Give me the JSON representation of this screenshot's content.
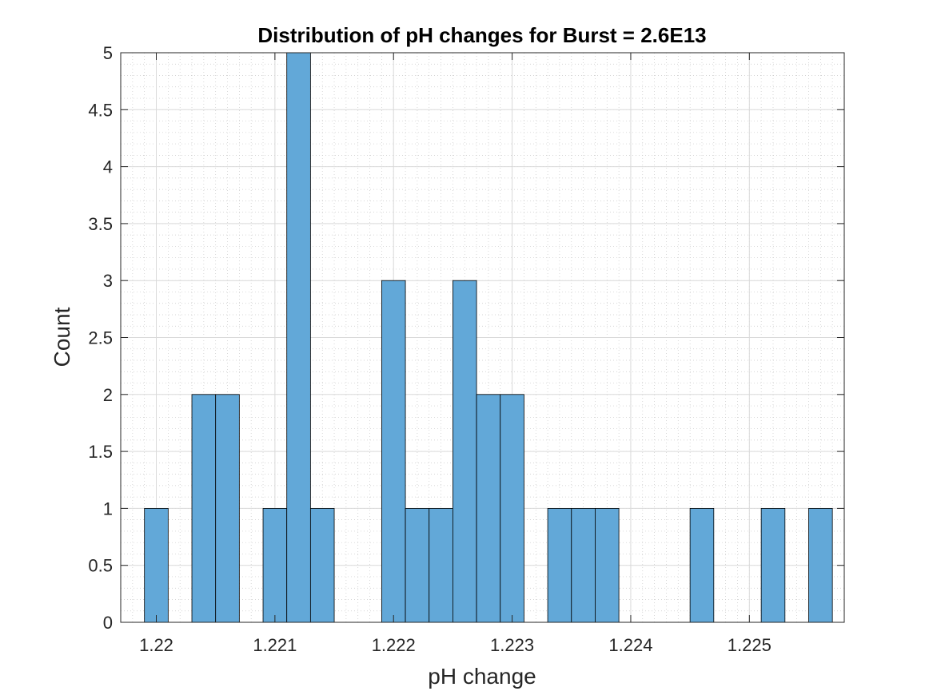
{
  "chart_data": {
    "type": "bar",
    "title": "Distribution of pH changes for Burst = 2.6E13",
    "xlabel": "pH change",
    "ylabel": "Count",
    "xlim": [
      1.2197,
      1.2258
    ],
    "ylim": [
      0,
      5
    ],
    "bin_width": 0.0002,
    "x_ticks": [
      1.22,
      1.221,
      1.222,
      1.223,
      1.224,
      1.225
    ],
    "x_tick_labels": [
      "1.22",
      "1.221",
      "1.222",
      "1.223",
      "1.224",
      "1.225"
    ],
    "y_ticks": [
      0,
      0.5,
      1,
      1.5,
      2,
      2.5,
      3,
      3.5,
      4,
      4.5,
      5
    ],
    "y_tick_labels": [
      "0",
      "0.5",
      "1",
      "1.5",
      "2",
      "2.5",
      "3",
      "3.5",
      "4",
      "4.5",
      "5"
    ],
    "grid": true,
    "minor_grid": true,
    "color": "#62a8d8",
    "bins": [
      {
        "start": 1.2199,
        "count": 1
      },
      {
        "start": 1.2203,
        "count": 2
      },
      {
        "start": 1.2205,
        "count": 2
      },
      {
        "start": 1.2209,
        "count": 1
      },
      {
        "start": 1.2211,
        "count": 5
      },
      {
        "start": 1.2213,
        "count": 1
      },
      {
        "start": 1.2219,
        "count": 3
      },
      {
        "start": 1.2221,
        "count": 1
      },
      {
        "start": 1.2223,
        "count": 1
      },
      {
        "start": 1.2225,
        "count": 3
      },
      {
        "start": 1.2227,
        "count": 2
      },
      {
        "start": 1.2229,
        "count": 2
      },
      {
        "start": 1.2233,
        "count": 1
      },
      {
        "start": 1.2235,
        "count": 1
      },
      {
        "start": 1.2237,
        "count": 1
      },
      {
        "start": 1.2245,
        "count": 1
      },
      {
        "start": 1.2251,
        "count": 1
      },
      {
        "start": 1.2255,
        "count": 1
      }
    ]
  }
}
